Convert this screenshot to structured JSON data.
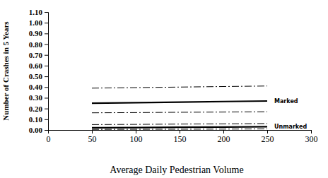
{
  "chart_data": {
    "type": "line",
    "xlabel": "Average Daily Pedestrian Volume",
    "ylabel": "Number of Crashes in 5 Years",
    "x": [
      50,
      100,
      150,
      200,
      250
    ],
    "xlim": [
      0,
      300
    ],
    "xticks": [
      0,
      50,
      100,
      150,
      200,
      250,
      300
    ],
    "ylim": [
      0,
      1.1
    ],
    "yticks": [
      {
        "value": 0,
        "label": "0.00"
      },
      {
        "value": 0.1,
        "label": "0.10"
      },
      {
        "value": 0.2,
        "label": "0.20"
      },
      {
        "value": 0.3,
        "label": "0.30"
      },
      {
        "value": 0.4,
        "label": "0.40"
      },
      {
        "value": 0.5,
        "label": "0.50"
      },
      {
        "value": 0.6,
        "label": "0.60"
      },
      {
        "value": 0.7,
        "label": "0.70"
      },
      {
        "value": 0.8,
        "label": "0.80"
      },
      {
        "value": 0.9,
        "label": "0.90"
      },
      {
        "value": 1.0,
        "label": "1.00"
      },
      {
        "value": 1.1,
        "label": "1.10"
      }
    ],
    "grid": false,
    "series": [
      {
        "name": "Marked",
        "color": "#000000",
        "line_style": "solid",
        "values": [
          0.25,
          0.255,
          0.26,
          0.265,
          0.27
        ]
      },
      {
        "color": "#000000",
        "line_style": "dashdot",
        "values": [
          0.39,
          0.395,
          0.4,
          0.405,
          0.41
        ]
      },
      {
        "color": "#000000",
        "line_style": "dashdot",
        "values": [
          0.16,
          0.162,
          0.165,
          0.167,
          0.17
        ]
      },
      {
        "name": "Unmarked",
        "color": "#000000",
        "line_style": "solid",
        "values": [
          0.02,
          0.022,
          0.025,
          0.027,
          0.03
        ]
      },
      {
        "color": "#000000",
        "line_style": "dashdot",
        "values": [
          0.05,
          0.052,
          0.055,
          0.057,
          0.06
        ]
      },
      {
        "color": "#000000",
        "line_style": "dashdot",
        "values": [
          0.005,
          0.006,
          0.007,
          0.008,
          0.01
        ]
      }
    ]
  }
}
